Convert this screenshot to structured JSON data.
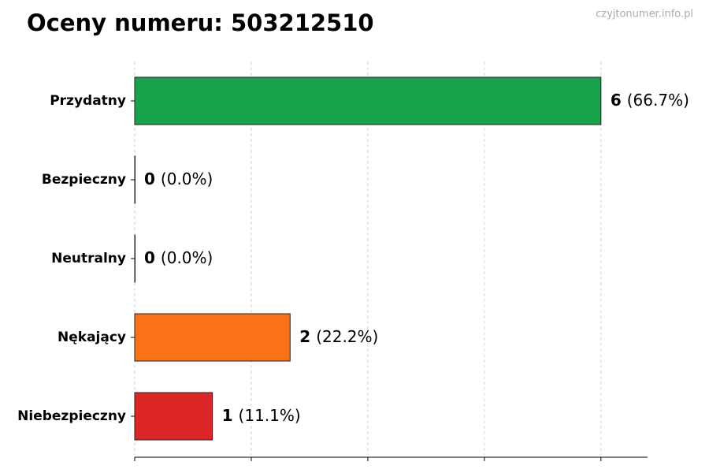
{
  "chart_data": {
    "type": "barh",
    "title": "Oceny numeru: 503212510",
    "watermark": "czyjtonumer.info.pl",
    "categories": [
      "Przydatny",
      "Bezpieczny",
      "Neutralny",
      "Nękający",
      "Niebezpieczny"
    ],
    "values": [
      6,
      0,
      0,
      2,
      1
    ],
    "percent_labels": [
      "(66.7%)",
      "(0.0%)",
      "(0.0%)",
      "(22.2%)",
      "(11.1%)"
    ],
    "colors": [
      "#16a34a",
      "#6b7280",
      "#9ca3af",
      "#f97316",
      "#dc2626"
    ],
    "xlim": [
      0,
      6.6
    ],
    "xticks": [
      0,
      1.5,
      3,
      4.5,
      6
    ],
    "grid": true
  }
}
